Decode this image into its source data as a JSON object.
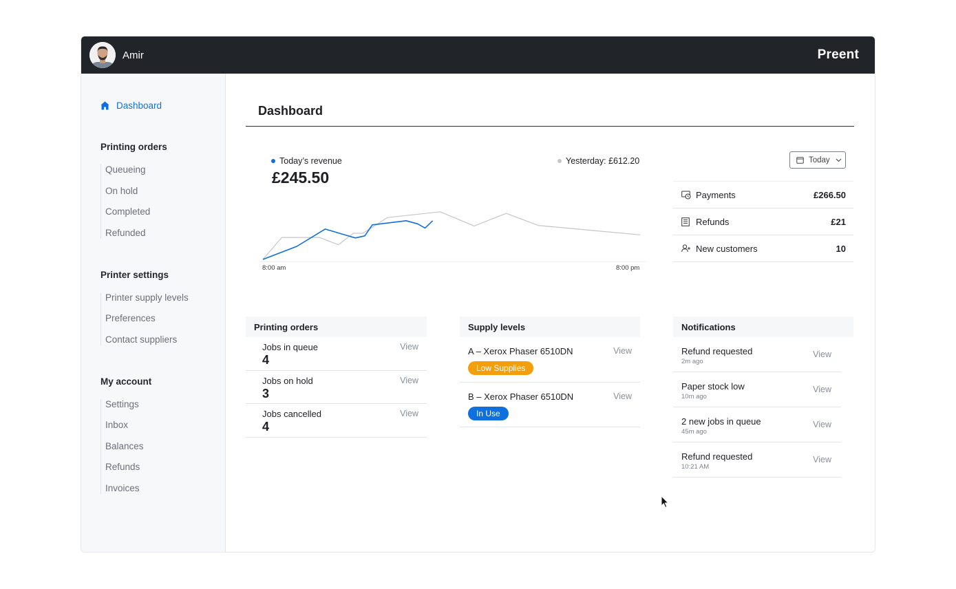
{
  "header": {
    "user_name": "Amir",
    "brand": "Preent"
  },
  "sidebar": {
    "active": {
      "label": "Dashboard",
      "icon": "home-icon"
    },
    "groups": [
      {
        "title": "Printing orders",
        "items": [
          "Queueing",
          "On hold",
          "Completed",
          "Refunded"
        ]
      },
      {
        "title": "Printer settings",
        "items": [
          "Printer supply levels",
          "Preferences",
          "Contact suppliers"
        ]
      },
      {
        "title": "My account",
        "items": [
          "Settings",
          "Inbox",
          "Balances",
          "Refunds",
          "Invoices"
        ]
      }
    ]
  },
  "main": {
    "title": "Dashboard",
    "revenue": {
      "today_label": "Today’s revenue",
      "today_value": "£245.50",
      "yesterday_label": "Yesterday: £612.20",
      "range_button": "Today"
    },
    "stats": [
      {
        "label": "Payments",
        "value": "£266.50",
        "icon": "payments-icon"
      },
      {
        "label": "Refunds",
        "value": "£21",
        "icon": "receipt-icon"
      },
      {
        "label": "New customers",
        "value": "10",
        "icon": "add-user-icon"
      }
    ],
    "orders": {
      "title": "Printing orders",
      "rows": [
        {
          "label": "Jobs in queue",
          "value": "4",
          "action": "View"
        },
        {
          "label": "Jobs on hold",
          "value": "3",
          "action": "View"
        },
        {
          "label": "Jobs cancelled",
          "value": "4",
          "action": "View"
        }
      ]
    },
    "supply": {
      "title": "Supply levels",
      "rows": [
        {
          "label": "A –  Xerox Phaser 6510DN",
          "status": "Low Supplies",
          "status_color": "#f59e0b",
          "action": "View"
        },
        {
          "label": "B –  Xerox Phaser 6510DN",
          "status": "In Use",
          "status_color": "#0f6fdc",
          "action": "View"
        }
      ]
    },
    "notifications": {
      "title": "Notifications",
      "rows": [
        {
          "label": "Refund requested",
          "time": "2m ago",
          "action": "View"
        },
        {
          "label": "Paper stock low",
          "time": "10m ago",
          "action": "View"
        },
        {
          "label": "2 new jobs in queue",
          "time": "45m ago",
          "action": "View"
        },
        {
          "label": "Refund requested",
          "time": "10:21  AM",
          "action": "View"
        }
      ]
    }
  },
  "chart_data": {
    "type": "line",
    "x_start_label": "8:00 am",
    "x_end_label": "8:00 pm",
    "series": [
      {
        "name": "Today’s revenue",
        "color": "#0f6fdc",
        "points": [
          [
            0,
            0
          ],
          [
            0.09,
            0.25
          ],
          [
            0.165,
            0.58
          ],
          [
            0.245,
            0.41
          ],
          [
            0.27,
            0.45
          ],
          [
            0.29,
            0.66
          ],
          [
            0.38,
            0.74
          ],
          [
            0.41,
            0.68
          ],
          [
            0.43,
            0.6
          ],
          [
            0.45,
            0.74
          ]
        ]
      },
      {
        "name": "Yesterday",
        "color": "#c4c6ca",
        "points": [
          [
            0,
            0
          ],
          [
            0.05,
            0.42
          ],
          [
            0.15,
            0.42
          ],
          [
            0.2,
            0.28
          ],
          [
            0.24,
            0.5
          ],
          [
            0.265,
            0.5
          ],
          [
            0.33,
            0.8
          ],
          [
            0.47,
            0.91
          ],
          [
            0.56,
            0.64
          ],
          [
            0.645,
            0.88
          ],
          [
            0.73,
            0.65
          ],
          [
            1,
            0.47
          ]
        ]
      }
    ]
  }
}
